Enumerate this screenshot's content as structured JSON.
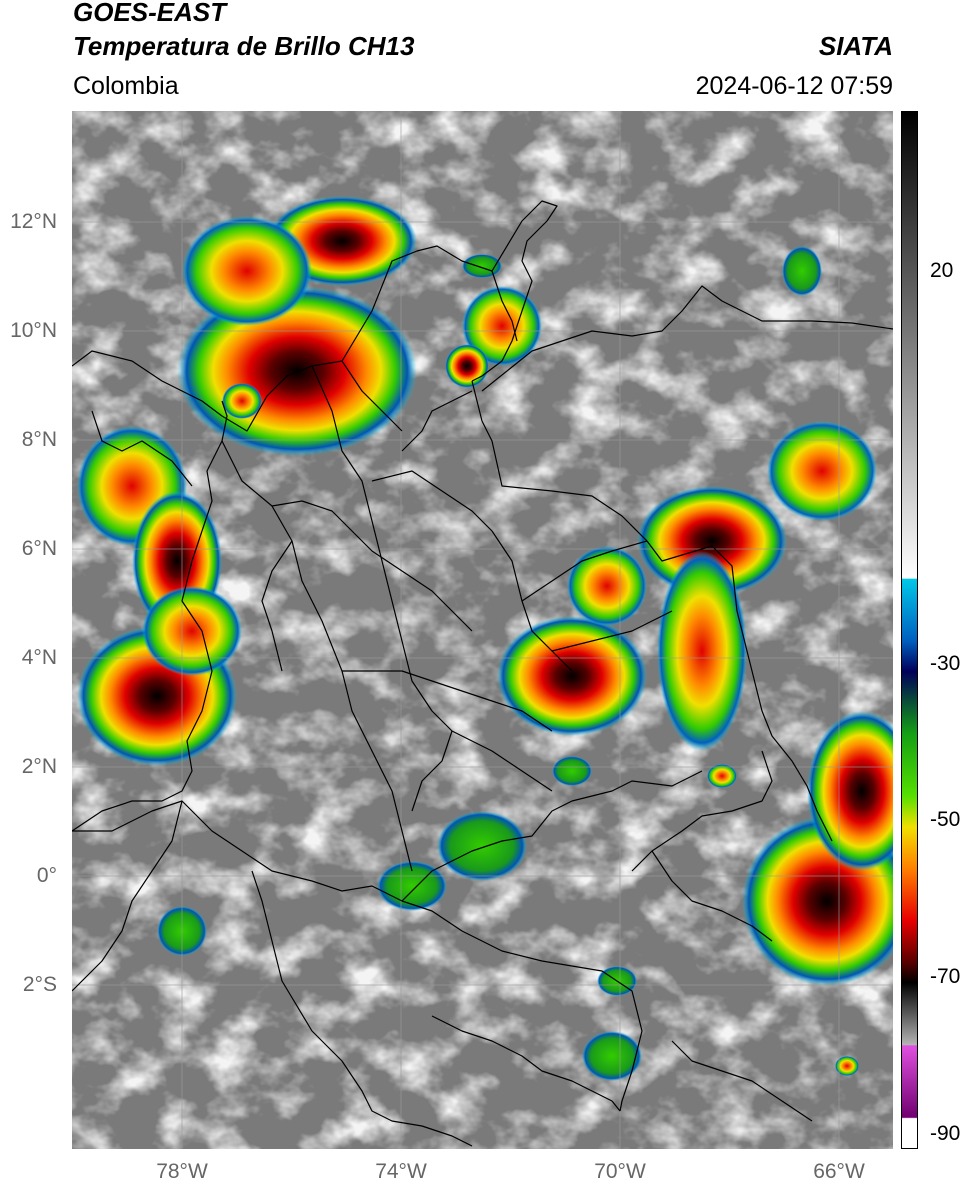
{
  "header": {
    "title_line1": "GOES-EAST",
    "title_line2": "Temperatura de Brillo CH13",
    "brand": "SIATA",
    "region": "Colombia",
    "timestamp": "2024-06-12 07:59"
  },
  "map": {
    "lat_labels": [
      "12°N",
      "10°N",
      "8°N",
      "6°N",
      "4°N",
      "2°N",
      "0°",
      "2°S"
    ],
    "lon_labels": [
      "78°W",
      "74°W",
      "70°W",
      "66°W"
    ],
    "colors": {
      "land_gray": "#7a7a7a",
      "cloud_white": "#e8e8e8",
      "border": "#000000",
      "grid": "#9a9a9a"
    }
  },
  "colorbar": {
    "labels": [
      "20",
      "-30",
      "-50",
      "-70",
      "-90"
    ],
    "stops": [
      "#000000",
      "#777777",
      "#ffffff",
      "#00c8e8",
      "#0055b4",
      "#00005a",
      "#14a014",
      "#55e000",
      "#f0e000",
      "#ff8000",
      "#e80000",
      "#5a0000",
      "#000000",
      "#b4b4b4",
      "#e050e0",
      "#700070",
      "#ffffff"
    ]
  }
}
